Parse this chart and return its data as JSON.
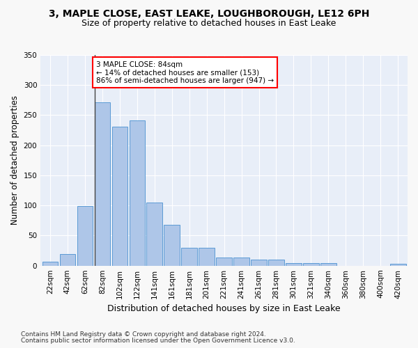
{
  "title": "3, MAPLE CLOSE, EAST LEAKE, LOUGHBOROUGH, LE12 6PH",
  "subtitle": "Size of property relative to detached houses in East Leake",
  "xlabel": "Distribution of detached houses by size in East Leake",
  "ylabel": "Number of detached properties",
  "bar_values": [
    7,
    19,
    99,
    271,
    231,
    241,
    105,
    68,
    30,
    30,
    14,
    14,
    10,
    10,
    4,
    4,
    4,
    0,
    0,
    0,
    3
  ],
  "bin_labels": [
    "22sqm",
    "42sqm",
    "62sqm",
    "82sqm",
    "102sqm",
    "122sqm",
    "141sqm",
    "161sqm",
    "181sqm",
    "201sqm",
    "221sqm",
    "241sqm",
    "261sqm",
    "281sqm",
    "301sqm",
    "321sqm",
    "340sqm",
    "360sqm",
    "380sqm",
    "400sqm",
    "420sqm"
  ],
  "bar_color": "#aec6e8",
  "bar_edge_color": "#5b9bd5",
  "annotation_text": "3 MAPLE CLOSE: 84sqm\n← 14% of detached houses are smaller (153)\n86% of semi-detached houses are larger (947) →",
  "annotation_box_color": "#ffffff",
  "annotation_box_edge_color": "#ff0000",
  "vline_x_bin": 3,
  "ylim": [
    0,
    350
  ],
  "yticks": [
    0,
    50,
    100,
    150,
    200,
    250,
    300,
    350
  ],
  "background_color": "#e8eef8",
  "grid_color": "#ffffff",
  "footer_line1": "Contains HM Land Registry data © Crown copyright and database right 2024.",
  "footer_line2": "Contains public sector information licensed under the Open Government Licence v3.0.",
  "title_fontsize": 10,
  "subtitle_fontsize": 9,
  "xlabel_fontsize": 9,
  "ylabel_fontsize": 8.5,
  "tick_fontsize": 7.5,
  "annotation_fontsize": 7.5,
  "footer_fontsize": 6.5
}
